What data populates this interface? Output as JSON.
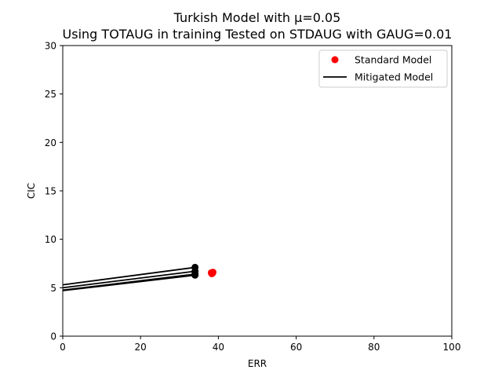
{
  "chart_data": {
    "type": "scatter",
    "title": "Turkish Model with μ=0.05",
    "subtitle": "Using TOTAUG in training Tested on STDAUG with GAUG=0.01",
    "xlabel": "ERR",
    "ylabel": "CIC",
    "xlim": [
      0,
      100
    ],
    "ylim": [
      0,
      30
    ],
    "xticks": [
      "0",
      "20",
      "40",
      "60",
      "80",
      "100"
    ],
    "yticks": [
      "0",
      "5",
      "10",
      "15",
      "20",
      "25",
      "30"
    ],
    "grid": false,
    "legend_position": "top-right",
    "legend": [
      {
        "label": "Standard Model",
        "marker": "dot",
        "color": "#ff0000"
      },
      {
        "label": "Mitigated Model",
        "marker": "line",
        "color": "#000000"
      }
    ],
    "standard_points": [
      {
        "x": 38.2,
        "y": 6.55
      },
      {
        "x": 38.5,
        "y": 6.5
      },
      {
        "x": 38.3,
        "y": 6.45
      },
      {
        "x": 38.6,
        "y": 6.6
      }
    ],
    "mitigated_points": [
      {
        "x": 34.0,
        "y": 7.1
      },
      {
        "x": 34.0,
        "y": 6.7
      },
      {
        "x": 34.0,
        "y": 6.4
      },
      {
        "x": 34.0,
        "y": 6.3
      }
    ],
    "mitigated_lines": [
      {
        "x": [
          0,
          34.0
        ],
        "y": [
          5.3,
          7.1
        ]
      },
      {
        "x": [
          0,
          34.0
        ],
        "y": [
          5.0,
          6.7
        ]
      },
      {
        "x": [
          0,
          34.0
        ],
        "y": [
          4.75,
          6.4
        ]
      },
      {
        "x": [
          0,
          34.0
        ],
        "y": [
          4.7,
          6.3
        ]
      }
    ],
    "colors": {
      "standard": "#ff0000",
      "mitigated": "#000000"
    }
  }
}
